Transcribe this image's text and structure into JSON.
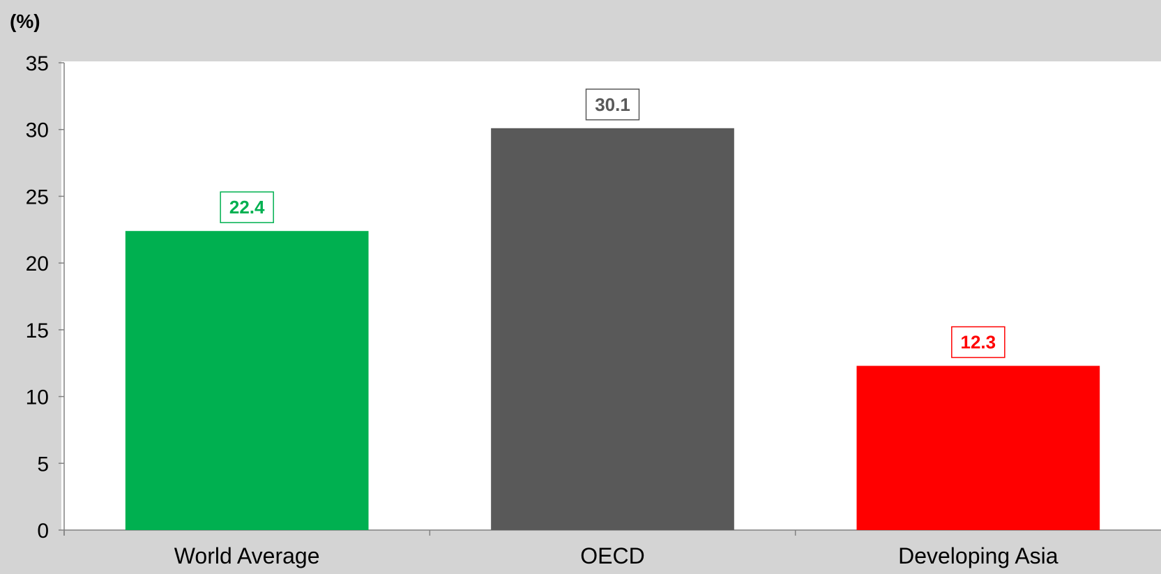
{
  "chart_data": {
    "type": "bar",
    "title": "",
    "unit_label": "(%)",
    "categories": [
      "World Average",
      "OECD",
      "Developing Asia"
    ],
    "values": [
      22.4,
      30.1,
      12.3
    ],
    "data_labels": [
      "22.4",
      "30.1",
      "12.3"
    ],
    "bar_colors": [
      "#00b050",
      "#595959",
      "#ff0000"
    ],
    "ylim": [
      0,
      35
    ],
    "yticks": [
      0,
      5,
      10,
      15,
      20,
      25,
      30,
      35
    ],
    "ytick_labels": [
      "0",
      "5",
      "10",
      "15",
      "20",
      "25",
      "30",
      "35"
    ],
    "xlabel": "",
    "ylabel": "",
    "grid": false,
    "legend": "none",
    "plot_background": "#ffffff",
    "page_background": "#d4d4d4"
  }
}
